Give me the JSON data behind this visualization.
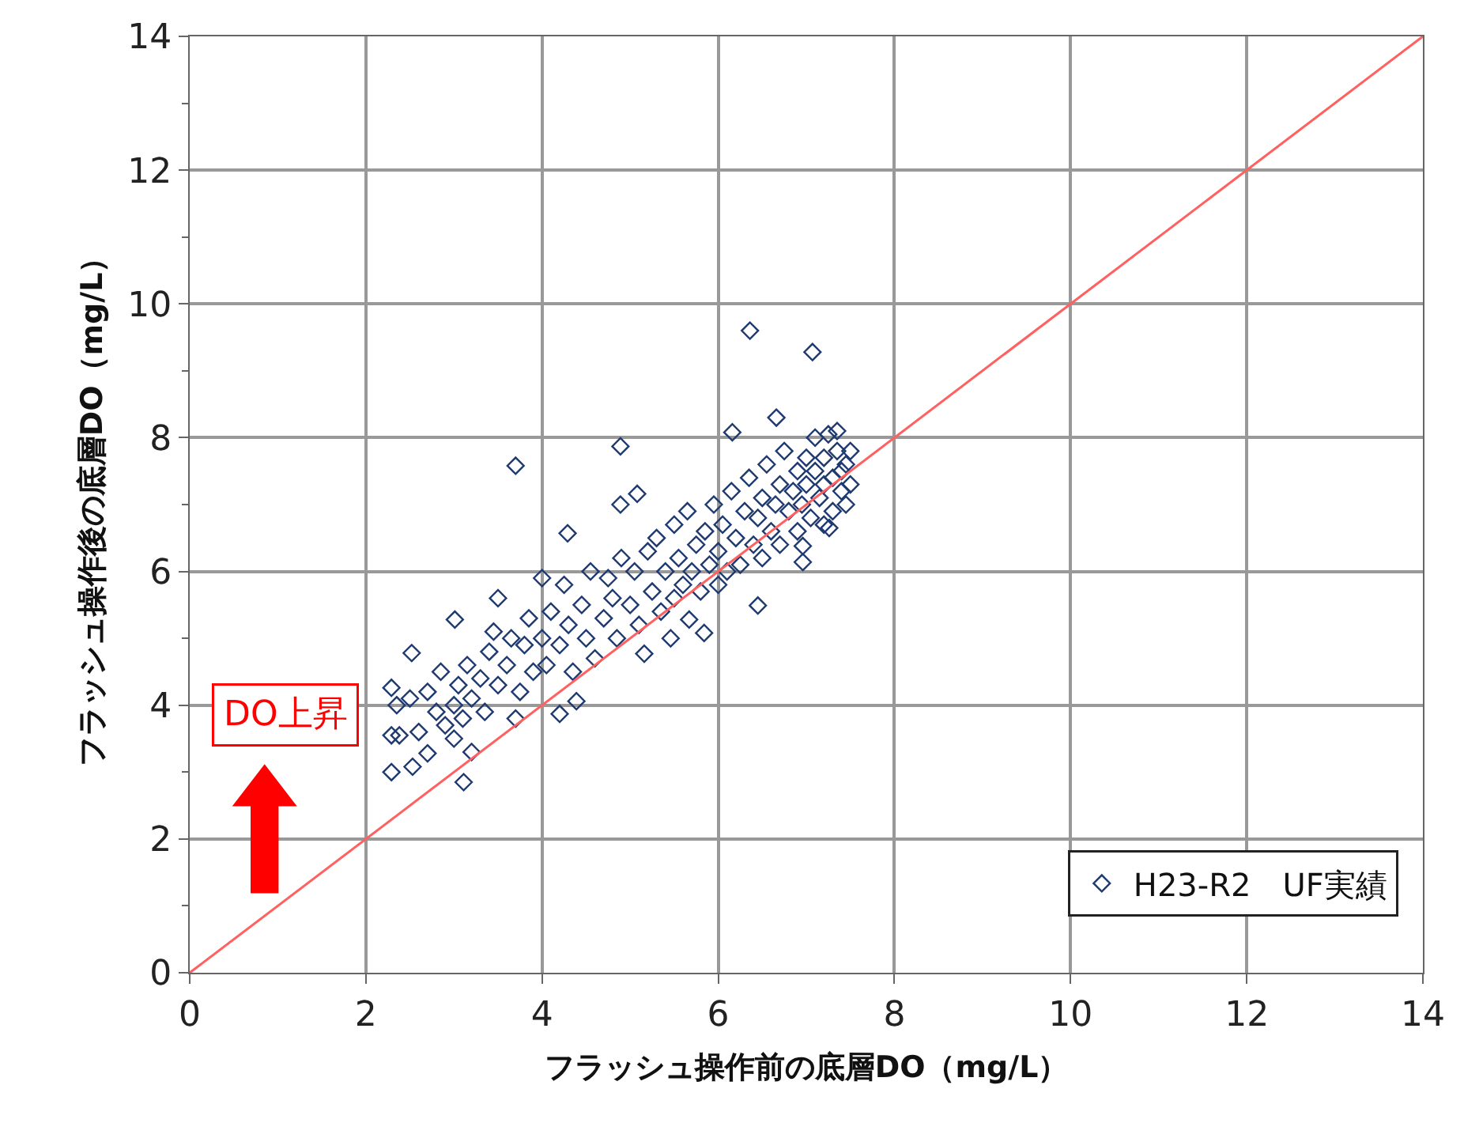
{
  "chart_data": {
    "type": "scatter",
    "xlabel": "フラッシュ操作前の底層DO（mg/L）",
    "ylabel": "フラッシュ操作後の底層DO（mg/L）",
    "xlim": [
      0,
      14
    ],
    "xticks": [
      0,
      2,
      4,
      6,
      8,
      10,
      12,
      14
    ],
    "ylim": [
      0,
      14
    ],
    "yticks": [
      0,
      2,
      4,
      6,
      8,
      10,
      12,
      14
    ],
    "grid": true,
    "legend": "bottom right",
    "marker": "diamond",
    "annotations": [
      "DO上昇"
    ],
    "series": [
      {
        "name": "H23-R2　UF実績",
        "color": "#1f3a70",
        "x": [
          6.36,
          7.07,
          6.66,
          6.16,
          3.7,
          4.89,
          4.89,
          5.08,
          4.29,
          6.45,
          7.26,
          6.96,
          6.96,
          2.29,
          2.53,
          3.11,
          2.29,
          2.52,
          3.01,
          2.29,
          2.38,
          2.7,
          4.2,
          4.39,
          3.7,
          5.16,
          5.46,
          5.84,
          5.67,
          2.35,
          2.5,
          2.6,
          2.7,
          2.8,
          2.85,
          2.9,
          3.0,
          3.0,
          3.05,
          3.1,
          3.15,
          3.2,
          3.2,
          3.3,
          3.35,
          3.4,
          3.5,
          3.5,
          3.45,
          3.6,
          3.65,
          3.75,
          3.8,
          3.85,
          3.9,
          4.0,
          4.0,
          4.05,
          4.1,
          4.2,
          4.25,
          4.3,
          4.35,
          4.45,
          4.5,
          4.55,
          4.6,
          4.7,
          4.75,
          4.8,
          4.85,
          4.9,
          5.0,
          5.05,
          5.1,
          5.2,
          5.25,
          5.3,
          5.35,
          5.4,
          5.5,
          5.5,
          5.55,
          5.6,
          5.65,
          5.7,
          5.75,
          5.8,
          5.85,
          5.9,
          5.95,
          6.0,
          6.0,
          6.05,
          6.1,
          6.15,
          6.2,
          6.25,
          6.3,
          6.35,
          6.4,
          6.45,
          6.5,
          6.5,
          6.55,
          6.6,
          6.65,
          6.7,
          6.7,
          6.75,
          6.8,
          6.85,
          6.9,
          6.9,
          6.95,
          7.0,
          7.0,
          7.05,
          7.1,
          7.1,
          7.15,
          7.2,
          7.2,
          7.25,
          7.3,
          7.3,
          7.35,
          7.4,
          7.4,
          7.45,
          7.5,
          7.5,
          7.35,
          7.2,
          7.45
        ],
        "values": [
          9.6,
          9.28,
          8.3,
          8.08,
          7.58,
          7.87,
          7.0,
          7.16,
          6.57,
          5.49,
          6.65,
          6.14,
          6.38,
          3.0,
          3.08,
          2.85,
          4.26,
          4.78,
          5.28,
          3.55,
          3.55,
          3.28,
          3.87,
          4.06,
          3.8,
          4.77,
          5.0,
          5.08,
          5.28,
          4.0,
          4.1,
          3.6,
          4.2,
          3.9,
          4.5,
          3.7,
          4.0,
          3.5,
          4.3,
          3.8,
          4.6,
          3.3,
          4.1,
          4.4,
          3.9,
          4.8,
          4.3,
          5.6,
          5.1,
          4.6,
          5.0,
          4.2,
          4.9,
          5.3,
          4.5,
          5.0,
          5.9,
          4.6,
          5.4,
          4.9,
          5.8,
          5.2,
          4.5,
          5.5,
          5.0,
          6.0,
          4.7,
          5.3,
          5.9,
          5.6,
          5.0,
          6.2,
          5.5,
          6.0,
          5.2,
          6.3,
          5.7,
          6.5,
          5.4,
          6.0,
          6.7,
          5.6,
          6.2,
          5.8,
          6.9,
          6.0,
          6.4,
          5.7,
          6.6,
          6.1,
          7.0,
          6.3,
          5.8,
          6.7,
          6.0,
          7.2,
          6.5,
          6.1,
          6.9,
          7.4,
          6.4,
          6.8,
          7.1,
          6.2,
          7.6,
          6.6,
          7.0,
          7.3,
          6.4,
          7.8,
          6.9,
          7.2,
          7.5,
          6.6,
          7.0,
          7.7,
          7.3,
          6.8,
          7.5,
          8.0,
          7.1,
          7.7,
          7.3,
          8.05,
          7.4,
          6.9,
          7.8,
          7.5,
          7.2,
          7.6,
          7.3,
          7.8,
          8.1,
          6.7,
          7.0
        ]
      },
      {
        "color": "#ff6060",
        "type": "line",
        "marker": "none",
        "x": [
          0,
          14
        ],
        "values": [
          0,
          14
        ]
      }
    ]
  }
}
